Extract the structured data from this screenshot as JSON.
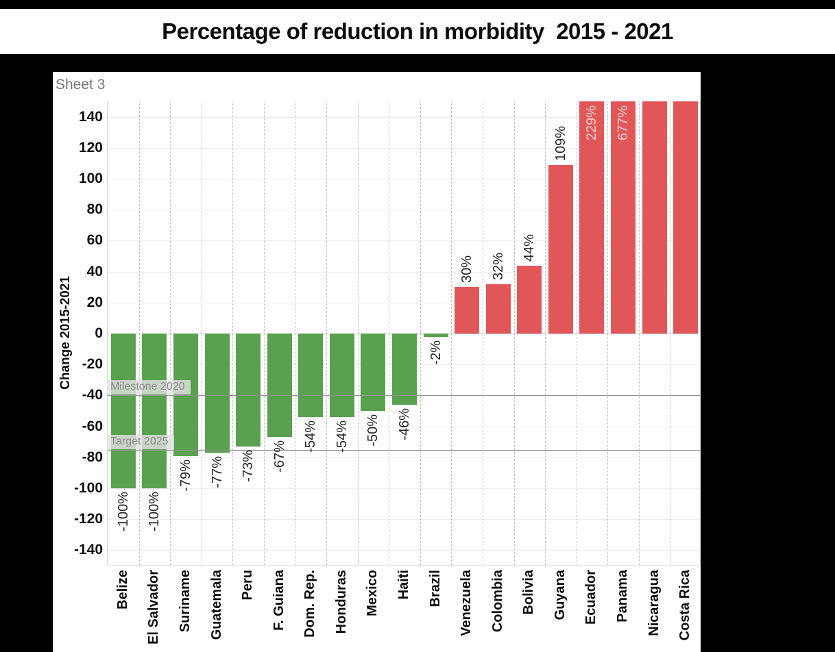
{
  "page_title": "Percentage of reduction in morbidity  2015 - 2021",
  "sheet_label": "Sheet 3",
  "chart_data": {
    "type": "bar",
    "title": "Percentage of reduction in morbidity  2015 - 2021",
    "xlabel": "",
    "ylabel": "Change 2015-2021",
    "ylim": [
      -150,
      150
    ],
    "yticks": [
      -140,
      -120,
      -100,
      -80,
      -60,
      -40,
      -20,
      0,
      20,
      40,
      60,
      80,
      100,
      120,
      140
    ],
    "legend": "none",
    "grid": {
      "horizontal_lines": true,
      "vertical_dotted_separators": true
    },
    "bar_colors": {
      "increase": "#e15759",
      "decrease": "#59a14f"
    },
    "label_colors": {
      "outside": "#262626",
      "inside": "#f2cfcf"
    },
    "reference_lines": [
      {
        "label": "Milestone 2020",
        "value": -40
      },
      {
        "label": "Target 2025",
        "value": -75
      }
    ],
    "bars": [
      {
        "country": "Belize",
        "value": -100,
        "label": "-100%",
        "label_pos": "below"
      },
      {
        "country": "El Salvador",
        "value": -100,
        "label": "-100%",
        "label_pos": "below"
      },
      {
        "country": "Suriname",
        "value": -79,
        "label": "-79%",
        "label_pos": "below"
      },
      {
        "country": "Guatemala",
        "value": -77,
        "label": "-77%",
        "label_pos": "below"
      },
      {
        "country": "Peru",
        "value": -73,
        "label": "-73%",
        "label_pos": "below"
      },
      {
        "country": "F. Guiana",
        "value": -67,
        "label": "-67%",
        "label_pos": "below"
      },
      {
        "country": "Dom. Rep.",
        "value": -54,
        "label": "-54%",
        "label_pos": "below"
      },
      {
        "country": "Honduras",
        "value": -54,
        "label": "-54%",
        "label_pos": "below"
      },
      {
        "country": "Mexico",
        "value": -50,
        "label": "-50%",
        "label_pos": "below"
      },
      {
        "country": "Haiti",
        "value": -46,
        "label": "-46%",
        "label_pos": "below"
      },
      {
        "country": "Brazil",
        "value": -2,
        "label": "-2%",
        "label_pos": "below"
      },
      {
        "country": "Venezuela",
        "value": 30,
        "label": "30%",
        "label_pos": "above"
      },
      {
        "country": "Colombia",
        "value": 32,
        "label": "32%",
        "label_pos": "above"
      },
      {
        "country": "Bolivia",
        "value": 44,
        "label": "44%",
        "label_pos": "above"
      },
      {
        "country": "Guyana",
        "value": 109,
        "label": "109%",
        "label_pos": "above"
      },
      {
        "country": "Ecuador",
        "value": 229,
        "label": "229%",
        "label_pos": "inside"
      },
      {
        "country": "Panama",
        "value": 677,
        "label": "677%",
        "label_pos": "inside"
      },
      {
        "country": "Nicaragua",
        "value": null,
        "label": "",
        "label_pos": "none",
        "clipped": true
      },
      {
        "country": "Costa Rica",
        "value": null,
        "label": "",
        "label_pos": "none",
        "clipped": true
      }
    ]
  }
}
